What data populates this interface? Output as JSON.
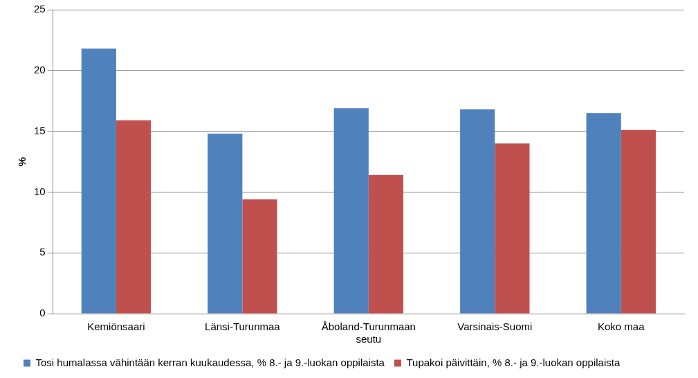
{
  "chart_data": {
    "type": "bar",
    "categories": [
      "Kemiönsaari",
      "Länsi-Turunmaa",
      "Åboland-Turunmaan seutu",
      "Varsinais-Suomi",
      "Koko maa"
    ],
    "y_label": "%",
    "series": [
      {
        "name": "Tosi humalassa vähintään kerran kuukaudessa, % 8.- ja 9.-luokan oppilaista",
        "color": "#4f81bd",
        "values": [
          21.8,
          14.8,
          16.9,
          16.8,
          16.5
        ]
      },
      {
        "name": "Tupakoi päivittäin, % 8.- ja 9.-luokan oppilaista",
        "color": "#c0504d",
        "values": [
          15.9,
          9.4,
          11.4,
          14.0,
          15.1
        ]
      }
    ],
    "ylim": [
      0,
      25
    ],
    "yticks": [
      0,
      5,
      10,
      15,
      20,
      25
    ],
    "grid": true,
    "legend": "bottom"
  }
}
